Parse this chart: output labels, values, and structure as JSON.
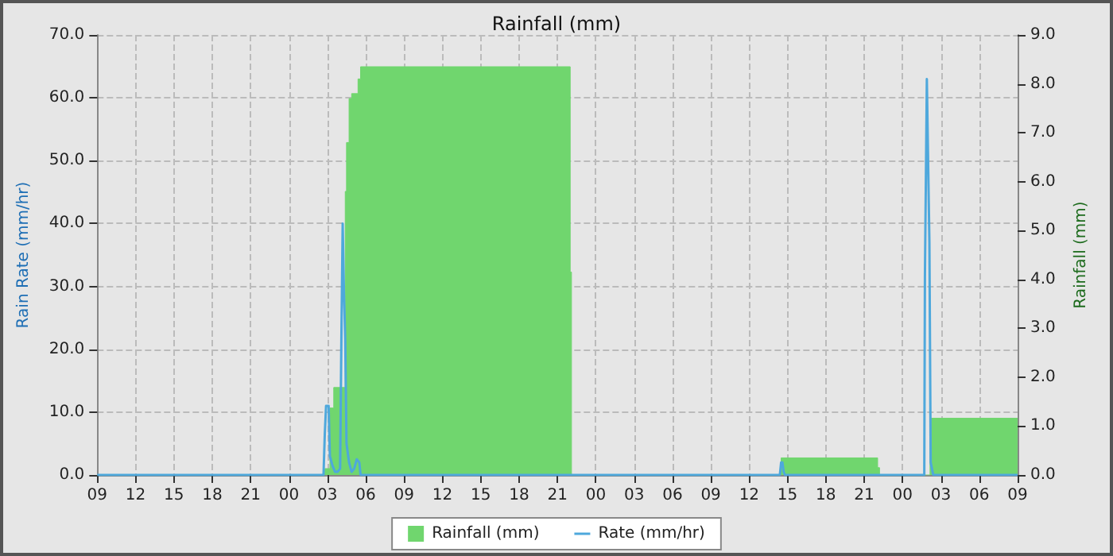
{
  "chart_data": {
    "type": "line",
    "title": "Rainfall (mm)",
    "ylabel": "Rain Rate (mm/hr)",
    "y2label": "Rainfall (mm)",
    "xlim": [
      9,
      81
    ],
    "xticks": [
      {
        "value": 9,
        "label": "09"
      },
      {
        "value": 12,
        "label": "12"
      },
      {
        "value": 15,
        "label": "15"
      },
      {
        "value": 18,
        "label": "18"
      },
      {
        "value": 21,
        "label": "21"
      },
      {
        "value": 24,
        "label": "00"
      },
      {
        "value": 27,
        "label": "03"
      },
      {
        "value": 30,
        "label": "06"
      },
      {
        "value": 33,
        "label": "09"
      },
      {
        "value": 36,
        "label": "12"
      },
      {
        "value": 39,
        "label": "15"
      },
      {
        "value": 42,
        "label": "18"
      },
      {
        "value": 45,
        "label": "21"
      },
      {
        "value": 48,
        "label": "00"
      },
      {
        "value": 51,
        "label": "03"
      },
      {
        "value": 54,
        "label": "06"
      },
      {
        "value": 57,
        "label": "09"
      },
      {
        "value": 60,
        "label": "12"
      },
      {
        "value": 63,
        "label": "15"
      },
      {
        "value": 66,
        "label": "18"
      },
      {
        "value": 69,
        "label": "21"
      },
      {
        "value": 72,
        "label": "00"
      },
      {
        "value": 75,
        "label": "03"
      },
      {
        "value": 78,
        "label": "06"
      },
      {
        "value": 81,
        "label": "09"
      }
    ],
    "ylim": [
      0,
      70
    ],
    "yticks": [
      {
        "value": 0,
        "label": "0.0"
      },
      {
        "value": 10,
        "label": "10.0"
      },
      {
        "value": 20,
        "label": "20.0"
      },
      {
        "value": 30,
        "label": "30.0"
      },
      {
        "value": 40,
        "label": "40.0"
      },
      {
        "value": 50,
        "label": "50.0"
      },
      {
        "value": 60,
        "label": "60.0"
      },
      {
        "value": 70,
        "label": "70.0"
      }
    ],
    "y2lim": [
      0,
      9
    ],
    "y2ticks": [
      {
        "value": 0,
        "label": "0.0"
      },
      {
        "value": 1,
        "label": "1.0"
      },
      {
        "value": 2,
        "label": "2.0"
      },
      {
        "value": 3,
        "label": "3.0"
      },
      {
        "value": 4,
        "label": "4.0"
      },
      {
        "value": 5,
        "label": "5.0"
      },
      {
        "value": 6,
        "label": "6.0"
      },
      {
        "value": 7,
        "label": "7.0"
      },
      {
        "value": 8,
        "label": "8.0"
      },
      {
        "value": 9,
        "label": "9.0"
      }
    ],
    "grid": true,
    "legend": "bottom",
    "marker": "none",
    "series": [
      {
        "name": "Rainfall (mm)",
        "type": "area",
        "axis": "y2",
        "color": "#70d66e",
        "x": [
          9,
          26.8,
          26.8,
          27.2,
          27.2,
          27.5,
          27.5,
          28.4,
          28.4,
          28.5,
          28.5,
          28.7,
          28.7,
          28.9,
          28.9,
          29.4,
          29.4,
          29.6,
          29.6,
          46.0,
          46.0,
          46.1,
          46.1,
          62.5,
          62.5,
          70.05,
          70.05,
          70.2,
          70.2,
          74.15,
          74.15,
          81
        ],
        "values": [
          0,
          0,
          0.13,
          0.13,
          1.37,
          1.37,
          1.79,
          1.79,
          5.8,
          5.8,
          6.8,
          6.8,
          7.7,
          7.7,
          7.8,
          7.8,
          8.1,
          8.1,
          8.35,
          8.35,
          4.15,
          4.15,
          0,
          0,
          0.35,
          0.35,
          0.15,
          0.15,
          0,
          0,
          1.16,
          1.16
        ]
      },
      {
        "name": "Rate (mm/hr)",
        "color": "#4ea8dc",
        "x": [
          9,
          26.7,
          26.8,
          26.9,
          27.1,
          27.2,
          27.4,
          27.6,
          27.8,
          28.0,
          28.1,
          28.2,
          28.3,
          28.4,
          28.5,
          28.7,
          28.9,
          29.1,
          29.3,
          29.5,
          29.6,
          62.4,
          62.5,
          62.6,
          62.7,
          62.8,
          73.7,
          73.75,
          73.9,
          74.1,
          74.2,
          74.3,
          74.4,
          81
        ],
        "values": [
          0,
          0,
          6.5,
          11,
          11,
          3,
          1.5,
          0.5,
          0.5,
          1,
          22,
          40,
          29,
          21.5,
          5,
          2,
          0.5,
          1,
          2.5,
          2,
          0,
          0,
          2,
          2,
          0.5,
          0,
          0,
          31.5,
          63,
          37,
          2,
          1,
          0,
          0
        ]
      }
    ]
  }
}
